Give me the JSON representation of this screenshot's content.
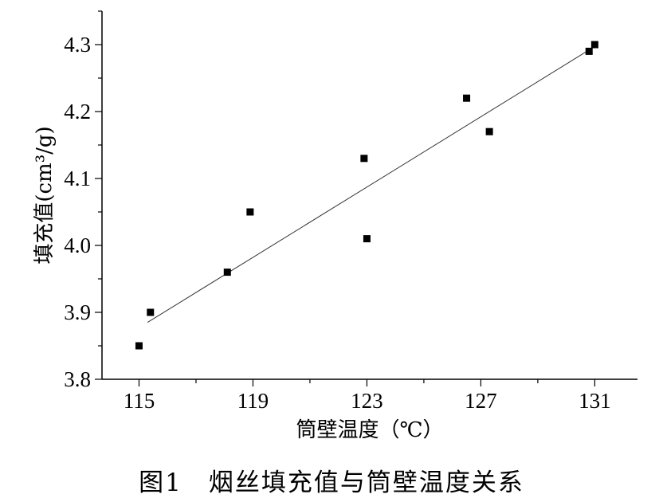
{
  "chart_data": {
    "type": "scatter",
    "title": "",
    "xlabel": "筒壁温度（℃）",
    "ylabel": "填充值(cm³/g)",
    "xlim": [
      113.7,
      132.5
    ],
    "ylim": [
      3.8,
      4.35
    ],
    "xticks": [
      115,
      119,
      123,
      127,
      131
    ],
    "yticks": [
      3.8,
      3.9,
      4.0,
      4.1,
      4.2,
      4.3
    ],
    "grid": false,
    "legend": "none",
    "points": [
      {
        "x": 115.0,
        "y": 3.85
      },
      {
        "x": 115.4,
        "y": 3.9
      },
      {
        "x": 118.1,
        "y": 3.96
      },
      {
        "x": 118.9,
        "y": 4.05
      },
      {
        "x": 122.9,
        "y": 4.13
      },
      {
        "x": 123.0,
        "y": 4.01
      },
      {
        "x": 126.5,
        "y": 4.22
      },
      {
        "x": 127.3,
        "y": 4.17
      },
      {
        "x": 130.8,
        "y": 4.29
      },
      {
        "x": 131.0,
        "y": 4.3
      }
    ],
    "trendline": {
      "x": [
        115.3,
        130.8
      ],
      "y": [
        3.885,
        4.292
      ]
    }
  },
  "caption": "图1　烟丝填充值与筒壁温度关系"
}
